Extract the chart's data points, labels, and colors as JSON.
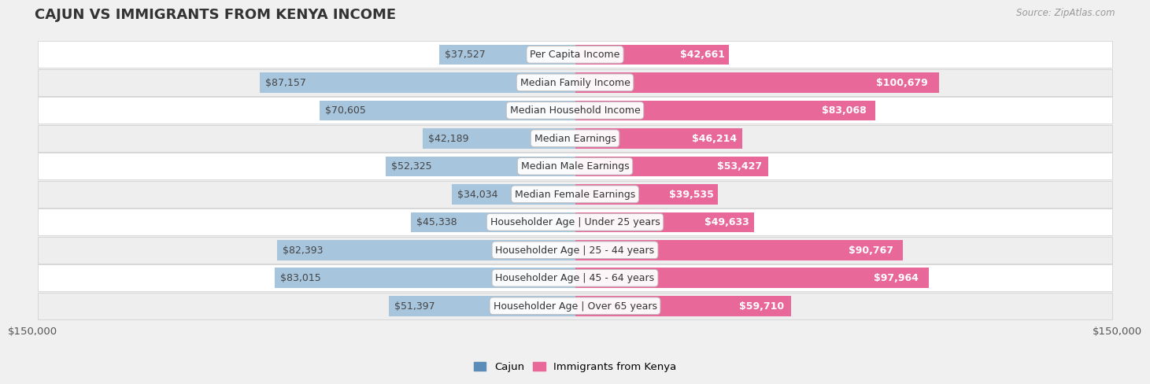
{
  "title": "CAJUN VS IMMIGRANTS FROM KENYA INCOME",
  "source": "Source: ZipAtlas.com",
  "categories": [
    "Per Capita Income",
    "Median Family Income",
    "Median Household Income",
    "Median Earnings",
    "Median Male Earnings",
    "Median Female Earnings",
    "Householder Age | Under 25 years",
    "Householder Age | 25 - 44 years",
    "Householder Age | 45 - 64 years",
    "Householder Age | Over 65 years"
  ],
  "cajun_values": [
    37527,
    87157,
    70605,
    42189,
    52325,
    34034,
    45338,
    82393,
    83015,
    51397
  ],
  "kenya_values": [
    42661,
    100679,
    83068,
    46214,
    53427,
    39535,
    49633,
    90767,
    97964,
    59710
  ],
  "cajun_labels": [
    "$37,527",
    "$87,157",
    "$70,605",
    "$42,189",
    "$52,325",
    "$34,034",
    "$45,338",
    "$82,393",
    "$83,015",
    "$51,397"
  ],
  "kenya_labels": [
    "$42,661",
    "$100,679",
    "$83,068",
    "$46,214",
    "$53,427",
    "$39,535",
    "$49,633",
    "$90,767",
    "$97,964",
    "$59,710"
  ],
  "cajun_color_strong": "#5b8db8",
  "cajun_color_light": "#a8c5de",
  "kenya_color_strong": "#e8689a",
  "kenya_color_light": "#f5b3cb",
  "max_value": 150000,
  "x_label_left": "$150,000",
  "x_label_right": "$150,000",
  "legend_cajun": "Cajun",
  "legend_kenya": "Immigrants from Kenya",
  "page_background": "#f0f0f0",
  "row_bg_light": "#ffffff",
  "row_bg_dark": "#e8e8e8",
  "title_fontsize": 13,
  "label_fontsize": 9,
  "cat_fontsize": 9,
  "bar_height": 0.72
}
